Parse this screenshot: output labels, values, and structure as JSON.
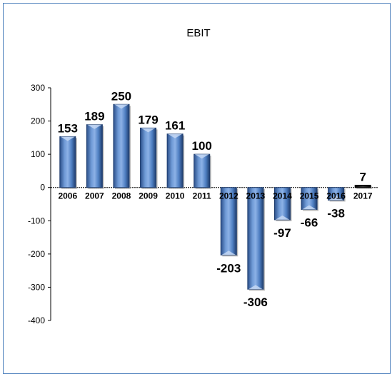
{
  "chart_data": {
    "type": "bar",
    "title": "EBIT",
    "xlabel": "",
    "ylabel": "",
    "categories": [
      "2006",
      "2007",
      "2008",
      "2009",
      "2010",
      "2011",
      "2012",
      "2013",
      "2014",
      "2015",
      "2016",
      "2017"
    ],
    "values": [
      153,
      189,
      250,
      179,
      161,
      100,
      -203,
      -306,
      -97,
      -66,
      -38,
      7
    ],
    "ylim": [
      -400,
      300
    ],
    "yticks": [
      300,
      200,
      100,
      0,
      -100,
      -200,
      -300,
      -400
    ],
    "grid": false,
    "legend": "none",
    "colors": {
      "bar": "#4f81bd",
      "bar_light": "#a9c4ea",
      "bar_dark": "#1f3d6e",
      "last_bar": "#1c1c1c",
      "frame": "#4a7ebb"
    }
  }
}
